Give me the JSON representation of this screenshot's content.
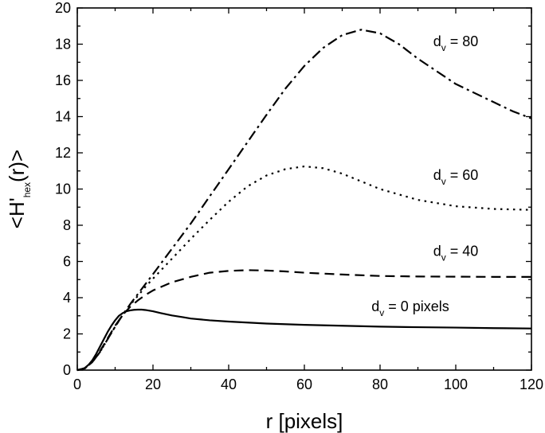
{
  "chart_data": {
    "type": "line",
    "title": "",
    "xlabel": "r [pixels]",
    "ylabel": {
      "prefix": "<H'",
      "sub": "hex",
      "suffix": "(r)>"
    },
    "xlim": [
      0,
      120
    ],
    "ylim": [
      0,
      20
    ],
    "xticks": [
      0,
      20,
      40,
      60,
      80,
      100,
      120
    ],
    "yticks": [
      0,
      2,
      4,
      6,
      8,
      10,
      12,
      14,
      16,
      18,
      20
    ],
    "grid": false,
    "legend": "none",
    "series": [
      {
        "name": "d_v = 0 pixels",
        "label_main": "d",
        "label_sub": "v",
        "label_rest": " = 0 pixels",
        "dash": "solid",
        "x": [
          0,
          1,
          2,
          3,
          4,
          5,
          6,
          7,
          8,
          9,
          10,
          11,
          12,
          13,
          14,
          15,
          16,
          17,
          18,
          20,
          22,
          25,
          28,
          30,
          35,
          40,
          50,
          60,
          70,
          80,
          90,
          100,
          110,
          120
        ],
        "y": [
          0,
          0.05,
          0.12,
          0.3,
          0.55,
          0.9,
          1.3,
          1.7,
          2.1,
          2.45,
          2.75,
          3.0,
          3.15,
          3.25,
          3.3,
          3.33,
          3.34,
          3.34,
          3.32,
          3.25,
          3.15,
          3.02,
          2.92,
          2.85,
          2.75,
          2.68,
          2.57,
          2.5,
          2.45,
          2.4,
          2.37,
          2.35,
          2.32,
          2.3
        ]
      },
      {
        "name": "d_v = 40",
        "label_main": "d",
        "label_sub": "v",
        "label_rest": " = 40",
        "dash": "dash",
        "x": [
          0,
          2,
          4,
          6,
          8,
          10,
          12,
          14,
          16,
          18,
          20,
          25,
          30,
          35,
          40,
          45,
          50,
          55,
          60,
          70,
          80,
          90,
          100,
          110,
          120
        ],
        "y": [
          0,
          0.1,
          0.45,
          1.05,
          1.75,
          2.45,
          3.05,
          3.5,
          3.85,
          4.15,
          4.4,
          4.85,
          5.15,
          5.38,
          5.48,
          5.52,
          5.5,
          5.45,
          5.38,
          5.28,
          5.2,
          5.17,
          5.16,
          5.15,
          5.15
        ]
      },
      {
        "name": "d_v = 60",
        "label_main": "d",
        "label_sub": "v",
        "label_rest": " = 60",
        "dash": "dot",
        "x": [
          0,
          2,
          4,
          6,
          8,
          10,
          12,
          14,
          16,
          18,
          20,
          25,
          30,
          35,
          40,
          45,
          50,
          55,
          60,
          65,
          70,
          80,
          90,
          100,
          110,
          120
        ],
        "y": [
          0,
          0.1,
          0.45,
          1.0,
          1.7,
          2.4,
          3.05,
          3.6,
          4.1,
          4.6,
          5.05,
          6.15,
          7.25,
          8.3,
          9.3,
          10.15,
          10.75,
          11.1,
          11.25,
          11.15,
          10.85,
          10.0,
          9.4,
          9.05,
          8.9,
          8.85
        ]
      },
      {
        "name": "d_v = 80",
        "label_main": "d",
        "label_sub": "v",
        "label_rest": " = 80",
        "dash": "dashdot",
        "x": [
          0,
          2,
          4,
          6,
          8,
          10,
          12,
          14,
          16,
          18,
          20,
          25,
          30,
          35,
          40,
          45,
          50,
          55,
          60,
          65,
          70,
          75,
          80,
          85,
          90,
          95,
          100,
          105,
          110,
          115,
          120
        ],
        "y": [
          0,
          0.1,
          0.45,
          1.0,
          1.7,
          2.4,
          3.05,
          3.65,
          4.2,
          4.75,
          5.3,
          6.7,
          8.1,
          9.6,
          11.1,
          12.6,
          14.1,
          15.55,
          16.8,
          17.8,
          18.5,
          18.8,
          18.6,
          18.0,
          17.2,
          16.5,
          15.8,
          15.3,
          14.8,
          14.3,
          13.9
        ]
      }
    ],
    "annotations": [
      {
        "series_index": 0,
        "x": 88,
        "y": 3.25
      },
      {
        "series_index": 1,
        "x": 100,
        "y": 6.3
      },
      {
        "series_index": 2,
        "x": 100,
        "y": 10.5
      },
      {
        "series_index": 3,
        "x": 100,
        "y": 17.9
      }
    ]
  }
}
